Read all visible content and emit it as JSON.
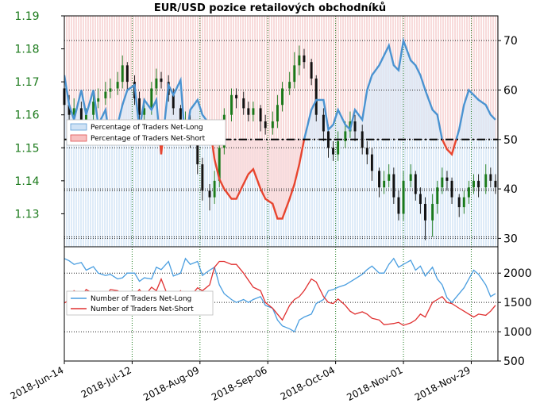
{
  "chart_data": {
    "type": "line",
    "title": "EUR/USD pozice retailových obchodníků",
    "x_ticks": [
      "2018-Jun-14",
      "2018-Jul-12",
      "2018-Aug-09",
      "2018-Sep-06",
      "2018-Oct-04",
      "2018-Nov-01",
      "2018-Nov-29"
    ],
    "x_start": "2018-06-14",
    "x_end": "2018-12-10",
    "top_panel": {
      "left_axis": {
        "ylim": [
          1.12,
          1.19
        ],
        "ticks": [
          "1.19",
          "1.18",
          "1.17",
          "1.16",
          "1.15",
          "1.14",
          "1.13"
        ],
        "color": "#1b7a1b"
      },
      "right_axis": {
        "ylim": [
          28.3,
          75
        ],
        "ticks": [
          "70",
          "60",
          "50",
          "40",
          "30"
        ]
      },
      "reference_line": 50,
      "legend": [
        "Percentage of Traders Net-Long",
        "Percentage of Traders Net-Short"
      ],
      "legend_placement": "upper-left",
      "percent_net_long": {
        "dates": [
          "2018-06-14",
          "2018-06-16",
          "2018-06-18",
          "2018-06-21",
          "2018-06-23",
          "2018-06-26",
          "2018-06-28",
          "2018-07-01",
          "2018-07-03",
          "2018-07-06",
          "2018-07-08",
          "2018-07-10",
          "2018-07-13",
          "2018-07-15",
          "2018-07-17",
          "2018-07-20",
          "2018-07-22",
          "2018-07-24",
          "2018-07-27",
          "2018-07-29",
          "2018-08-01",
          "2018-08-03",
          "2018-08-05",
          "2018-08-08",
          "2018-08-10",
          "2018-08-13",
          "2018-08-15",
          "2018-08-17",
          "2018-08-19",
          "2018-08-22",
          "2018-08-24",
          "2018-08-27",
          "2018-08-29",
          "2018-08-31",
          "2018-09-03",
          "2018-09-05",
          "2018-09-08",
          "2018-09-10",
          "2018-09-12",
          "2018-09-15",
          "2018-09-17",
          "2018-09-19",
          "2018-09-21",
          "2018-09-24",
          "2018-09-26",
          "2018-09-29",
          "2018-10-01",
          "2018-10-03",
          "2018-10-05",
          "2018-10-08",
          "2018-10-10",
          "2018-10-12",
          "2018-10-15",
          "2018-10-17",
          "2018-10-19",
          "2018-10-22",
          "2018-10-24",
          "2018-10-26",
          "2018-10-28",
          "2018-10-30",
          "2018-11-01",
          "2018-11-04",
          "2018-11-06",
          "2018-11-08",
          "2018-11-10",
          "2018-11-13",
          "2018-11-15",
          "2018-11-17",
          "2018-11-19",
          "2018-11-21",
          "2018-11-24",
          "2018-11-26",
          "2018-11-28",
          "2018-11-30",
          "2018-12-02",
          "2018-12-05",
          "2018-12-07",
          "2018-12-09"
        ],
        "values": [
          63,
          57,
          54,
          60,
          55,
          60,
          53,
          56,
          49,
          53,
          57,
          60,
          61,
          52,
          58,
          56,
          58,
          47,
          61,
          59,
          62,
          49,
          56,
          58,
          55,
          53,
          46,
          42,
          40,
          38,
          38,
          41,
          43,
          44,
          40,
          38,
          37,
          34,
          34,
          38,
          41,
          45,
          50,
          56,
          58,
          58,
          52,
          53,
          56,
          53,
          52,
          56,
          54,
          60,
          63,
          65,
          67,
          69,
          65,
          64,
          70,
          66,
          65,
          63,
          60,
          56,
          55,
          50,
          48,
          47,
          52,
          57,
          60,
          59,
          58,
          57,
          55,
          54
        ]
      },
      "price": {
        "open": [
          1.168,
          1.163,
          1.16,
          1.162,
          1.158,
          1.16,
          1.164,
          1.165,
          1.167,
          1.168,
          1.17,
          1.175,
          1.17,
          1.165,
          1.16,
          1.162,
          1.168,
          1.171,
          1.17,
          1.166,
          1.162,
          1.157,
          1.158,
          1.152,
          1.145,
          1.137,
          1.135,
          1.14,
          1.15,
          1.16,
          1.166,
          1.165,
          1.162,
          1.16,
          1.162,
          1.158,
          1.156,
          1.158,
          1.163,
          1.168,
          1.17,
          1.175,
          1.178,
          1.176,
          1.171,
          1.16,
          1.155,
          1.15,
          1.148,
          1.152,
          1.155,
          1.158,
          1.155,
          1.15,
          1.148,
          1.143,
          1.138,
          1.14,
          1.142,
          1.135,
          1.13,
          1.14,
          1.142,
          1.136,
          1.133,
          1.128,
          1.133,
          1.138,
          1.141,
          1.14,
          1.135,
          1.132,
          1.135,
          1.138,
          1.14,
          1.138,
          1.142,
          1.14
        ],
        "close": [
          1.163,
          1.16,
          1.162,
          1.158,
          1.16,
          1.164,
          1.165,
          1.167,
          1.168,
          1.17,
          1.175,
          1.17,
          1.165,
          1.16,
          1.162,
          1.168,
          1.171,
          1.17,
          1.166,
          1.162,
          1.157,
          1.158,
          1.152,
          1.145,
          1.137,
          1.135,
          1.14,
          1.15,
          1.16,
          1.166,
          1.165,
          1.162,
          1.16,
          1.162,
          1.158,
          1.156,
          1.158,
          1.163,
          1.168,
          1.17,
          1.175,
          1.178,
          1.176,
          1.171,
          1.16,
          1.155,
          1.15,
          1.148,
          1.152,
          1.155,
          1.158,
          1.155,
          1.15,
          1.148,
          1.143,
          1.138,
          1.14,
          1.142,
          1.135,
          1.13,
          1.14,
          1.142,
          1.136,
          1.133,
          1.128,
          1.133,
          1.138,
          1.141,
          1.14,
          1.135,
          1.132,
          1.135,
          1.138,
          1.14,
          1.138,
          1.142,
          1.14,
          1.138
        ],
        "high": [
          1.17,
          1.166,
          1.165,
          1.164,
          1.162,
          1.166,
          1.168,
          1.17,
          1.171,
          1.173,
          1.178,
          1.176,
          1.172,
          1.167,
          1.165,
          1.17,
          1.174,
          1.173,
          1.172,
          1.168,
          1.163,
          1.161,
          1.16,
          1.153,
          1.147,
          1.139,
          1.143,
          1.153,
          1.162,
          1.168,
          1.168,
          1.167,
          1.164,
          1.164,
          1.163,
          1.16,
          1.161,
          1.166,
          1.17,
          1.173,
          1.179,
          1.181,
          1.18,
          1.177,
          1.172,
          1.162,
          1.157,
          1.152,
          1.155,
          1.158,
          1.161,
          1.16,
          1.157,
          1.152,
          1.15,
          1.144,
          1.143,
          1.145,
          1.144,
          1.137,
          1.143,
          1.145,
          1.143,
          1.138,
          1.135,
          1.136,
          1.14,
          1.144,
          1.143,
          1.141,
          1.136,
          1.137,
          1.14,
          1.142,
          1.142,
          1.145,
          1.144,
          1.142
        ],
        "low": [
          1.16,
          1.157,
          1.158,
          1.155,
          1.156,
          1.158,
          1.162,
          1.163,
          1.165,
          1.166,
          1.168,
          1.167,
          1.163,
          1.157,
          1.158,
          1.16,
          1.166,
          1.168,
          1.164,
          1.16,
          1.155,
          1.155,
          1.15,
          1.142,
          1.134,
          1.131,
          1.133,
          1.138,
          1.148,
          1.158,
          1.162,
          1.16,
          1.158,
          1.158,
          1.155,
          1.154,
          1.154,
          1.156,
          1.161,
          1.166,
          1.168,
          1.172,
          1.174,
          1.169,
          1.158,
          1.152,
          1.147,
          1.146,
          1.146,
          1.15,
          1.153,
          1.152,
          1.148,
          1.145,
          1.14,
          1.135,
          1.136,
          1.138,
          1.133,
          1.128,
          1.128,
          1.138,
          1.134,
          1.13,
          1.122,
          1.123,
          1.13,
          1.136,
          1.137,
          1.133,
          1.129,
          1.13,
          1.133,
          1.136,
          1.135,
          1.136,
          1.138,
          1.136
        ]
      }
    },
    "bottom_panel": {
      "ylim": [
        500,
        2450
      ],
      "ticks": [
        "2000",
        "1500",
        "1000",
        "500"
      ],
      "legend_placement": "center-left",
      "series": [
        {
          "name": "Number of Traders Net-Long",
          "color": "#4a9ee0",
          "values": [
            2250,
            2210,
            2150,
            2180,
            2050,
            2110,
            2000,
            1960,
            1980,
            1900,
            1920,
            2000,
            2000,
            1860,
            1920,
            1900,
            2100,
            2060,
            2200,
            1950,
            2000,
            2250,
            2150,
            2200,
            1960,
            2050,
            2100,
            1800,
            1650,
            1550,
            1500,
            1550,
            1500,
            1550,
            1600,
            1450,
            1400,
            1200,
            1100,
            1050,
            1000,
            1200,
            1250,
            1300,
            1480,
            1550,
            1700,
            1720,
            1760,
            1800,
            1850,
            1900,
            1980,
            2060,
            2120,
            2000,
            2000,
            2150,
            2250,
            2100,
            2150,
            2220,
            2050,
            2120,
            1950,
            2100,
            1900,
            1800,
            1580,
            1500,
            1650,
            1750,
            1900,
            2050,
            1980,
            1800,
            1600,
            1650
          ]
        },
        {
          "name": "Number of Traders Net-Short",
          "color": "#e03030",
          "values": [
            1490,
            1540,
            1700,
            1600,
            1720,
            1650,
            1680,
            1600,
            1720,
            1700,
            1640,
            1650,
            1630,
            1720,
            1600,
            1760,
            1700,
            1900,
            1580,
            1600,
            1700,
            1500,
            1600,
            1750,
            1700,
            1800,
            2100,
            2200,
            2200,
            2150,
            2150,
            2000,
            1880,
            1760,
            1700,
            1500,
            1400,
            1300,
            1200,
            1450,
            1550,
            1600,
            1700,
            1900,
            1850,
            1600,
            1500,
            1480,
            1560,
            1450,
            1350,
            1300,
            1340,
            1300,
            1230,
            1200,
            1120,
            1130,
            1140,
            1160,
            1110,
            1150,
            1200,
            1300,
            1250,
            1500,
            1550,
            1600,
            1500,
            1480,
            1400,
            1350,
            1300,
            1250,
            1300,
            1280,
            1350,
            1450
          ]
        }
      ]
    }
  }
}
